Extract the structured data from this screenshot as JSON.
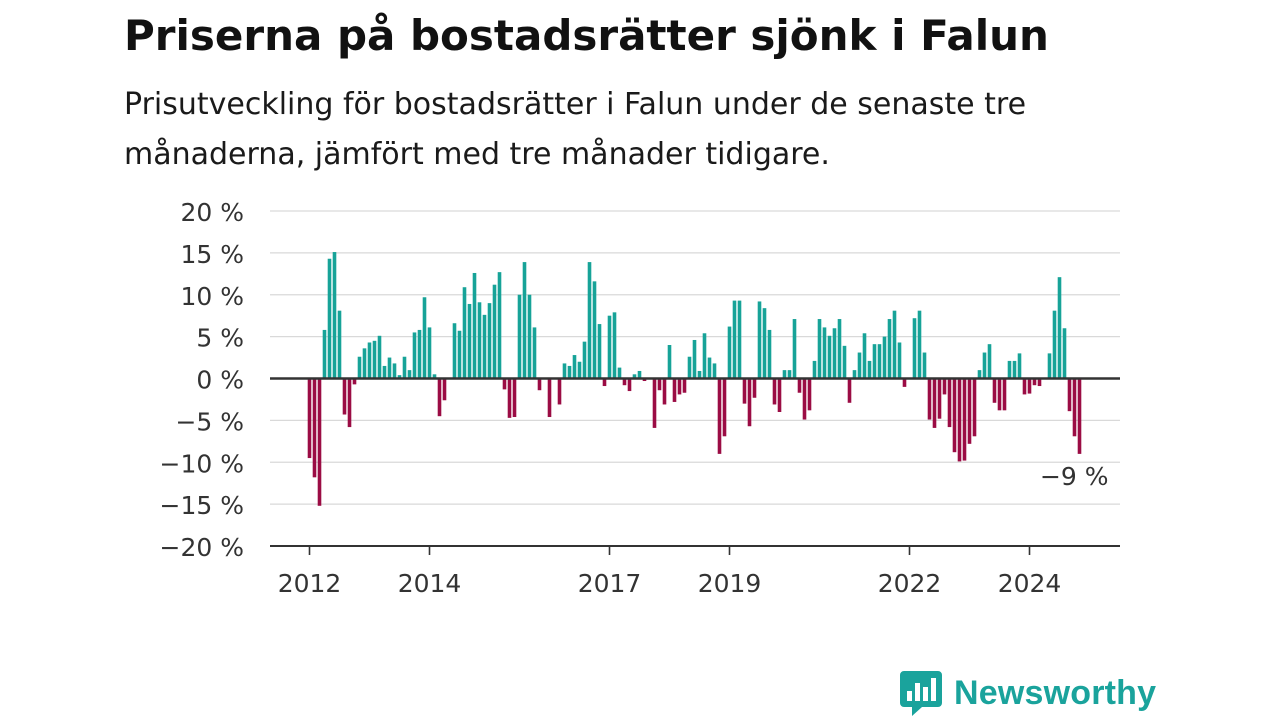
{
  "header": {
    "title": "Priserna på bostadsrätter sjönk i Falun",
    "subtitle": "Prisutveckling för bostadsrätter i Falun under de senaste tre månaderna, jämfört med tre månader tidigare."
  },
  "brand": {
    "name": "Newsworthy",
    "icon": "newsworthy-logo-icon"
  },
  "colors": {
    "positive": "#17a398",
    "negative": "#9b0c44",
    "grid": "#d9d9d9",
    "zero_line": "#333333"
  },
  "chart_data": {
    "type": "bar",
    "ylim": [
      -20,
      20
    ],
    "y_ticks": [
      {
        "value": 20,
        "label": "20 %"
      },
      {
        "value": 15,
        "label": "15 %"
      },
      {
        "value": 10,
        "label": "10 %"
      },
      {
        "value": 5,
        "label": "5 %"
      },
      {
        "value": 0,
        "label": "0 %"
      },
      {
        "value": -5,
        "label": "−5 %"
      },
      {
        "value": -10,
        "label": "−10 %"
      },
      {
        "value": -15,
        "label": "−15 %"
      },
      {
        "value": -20,
        "label": "−20 %"
      }
    ],
    "x_ticks": [
      {
        "index": 0,
        "label": "2012"
      },
      {
        "index": 24,
        "label": "2014"
      },
      {
        "index": 60,
        "label": "2017"
      },
      {
        "index": 84,
        "label": "2019"
      },
      {
        "index": 120,
        "label": "2022"
      },
      {
        "index": 144,
        "label": "2024"
      }
    ],
    "start": "2012-01",
    "grid": true,
    "annotation": {
      "text": "−9 %",
      "index": 153
    },
    "values": [
      -9.5,
      -11.8,
      -15.2,
      5.8,
      14.3,
      15.1,
      8.1,
      -4.3,
      -5.8,
      -0.7,
      2.6,
      3.6,
      4.3,
      4.5,
      5.1,
      1.5,
      2.5,
      1.8,
      0.4,
      2.6,
      1.0,
      5.5,
      5.8,
      9.7,
      6.1,
      0.5,
      -4.5,
      -2.6,
      0.0,
      6.6,
      5.7,
      10.9,
      8.9,
      12.6,
      9.1,
      7.6,
      9.0,
      11.2,
      12.7,
      -1.3,
      -4.7,
      -4.6,
      10.0,
      13.9,
      10.0,
      6.1,
      -1.4,
      0.0,
      -4.6,
      0.0,
      -3.1,
      1.8,
      1.5,
      2.8,
      2.0,
      4.4,
      13.9,
      11.6,
      6.5,
      -0.9,
      7.5,
      7.9,
      1.3,
      -0.8,
      -1.5,
      0.5,
      0.9,
      -0.3,
      0.0,
      -5.9,
      -1.4,
      -3.1,
      4.0,
      -2.8,
      -1.9,
      -1.7,
      2.6,
      4.6,
      0.9,
      5.4,
      2.5,
      1.8,
      -9.0,
      -6.9,
      6.2,
      9.3,
      9.3,
      -3.0,
      -5.7,
      -2.3,
      9.2,
      8.4,
      5.8,
      -3.1,
      -4.0,
      1.0,
      1.0,
      7.1,
      -1.7,
      -4.9,
      -3.8,
      2.1,
      7.1,
      6.1,
      5.1,
      6.0,
      7.1,
      3.9,
      -2.9,
      1.0,
      3.1,
      5.4,
      2.1,
      4.1,
      4.1,
      5.0,
      7.1,
      8.1,
      4.3,
      -1.0,
      0.0,
      7.2,
      8.1,
      3.1,
      -4.9,
      -5.9,
      -4.8,
      -1.9,
      -5.8,
      -8.8,
      -9.9,
      -9.8,
      -7.8,
      -6.9,
      1.0,
      3.1,
      4.1,
      -2.9,
      -3.8,
      -3.8,
      2.1,
      2.1,
      3.0,
      -1.9,
      -1.8,
      -0.8,
      -0.9,
      0.0,
      3.0,
      8.1,
      12.1,
      6.0,
      -3.9,
      -6.9,
      -9.0
    ]
  }
}
